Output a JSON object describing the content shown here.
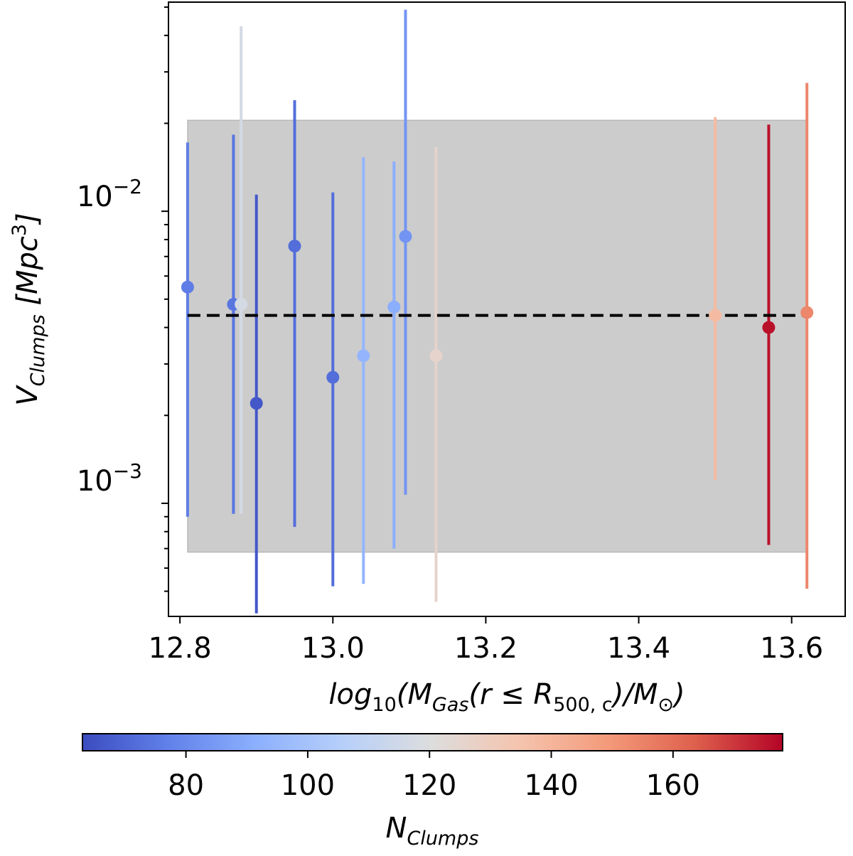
{
  "chart_data": {
    "type": "scatter",
    "x_scale": "linear",
    "y_scale": "log",
    "xlim": [
      12.785,
      13.67
    ],
    "ylim": [
      0.00041,
      0.052
    ],
    "xticks": [
      12.8,
      13.0,
      13.2,
      13.4,
      13.6
    ],
    "xtick_labels": [
      "12.8",
      "13.0",
      "13.2",
      "13.4",
      "13.6"
    ],
    "yticks": [
      0.001,
      0.01
    ],
    "ytick_labels": [
      {
        "base": "10",
        "exp": "−3"
      },
      {
        "base": "10",
        "exp": "−2"
      }
    ],
    "xlabel": {
      "prefix": "log",
      "prefix_sub": "10",
      "open": "(M",
      "gas_sub": "Gas",
      "mid": "(r ≤ R",
      "r_sub": "500, c",
      "close": ")/M",
      "sun_sub": "⊙",
      "end": ")"
    },
    "ylabel": {
      "var": "V",
      "var_sub": "Clumps",
      "units_open": "[Mpc",
      "units_exp": "3",
      "units_close": "]"
    },
    "mean_line": {
      "value": 0.0044,
      "x_range": [
        12.81,
        13.62
      ],
      "style": "dashed",
      "color": "#000000"
    },
    "band": {
      "lower": 0.00068,
      "upper": 0.0205,
      "x_range": [
        12.81,
        13.62
      ],
      "color": "#cccccc"
    },
    "colorbar": {
      "vmin": 63,
      "vmax": 178,
      "ticks": [
        80,
        100,
        120,
        140,
        160
      ],
      "tick_labels": [
        "80",
        "100",
        "120",
        "140",
        "160"
      ],
      "label": {
        "var": "N",
        "sub": "Clumps"
      },
      "colormap": "coolwarm"
    },
    "points": [
      {
        "x": 12.81,
        "y": 0.0055,
        "y_low": 0.0009,
        "y_high": 0.0172,
        "n": 76
      },
      {
        "x": 12.87,
        "y": 0.0048,
        "y_low": 0.00092,
        "y_high": 0.0183,
        "n": 74
      },
      {
        "x": 12.88,
        "y": 0.0048,
        "y_low": 0.00092,
        "y_high": 0.043,
        "n": 117
      },
      {
        "x": 12.9,
        "y": 0.0022,
        "y_low": 0.00042,
        "y_high": 0.0114,
        "n": 66
      },
      {
        "x": 12.95,
        "y": 0.0076,
        "y_low": 0.00083,
        "y_high": 0.024,
        "n": 72
      },
      {
        "x": 13.0,
        "y": 0.0027,
        "y_low": 0.00052,
        "y_high": 0.0116,
        "n": 72
      },
      {
        "x": 13.04,
        "y": 0.0032,
        "y_low": 0.00053,
        "y_high": 0.0153,
        "n": 94
      },
      {
        "x": 13.08,
        "y": 0.0047,
        "y_low": 0.0007,
        "y_high": 0.0148,
        "n": 91
      },
      {
        "x": 13.095,
        "y": 0.0082,
        "y_low": 0.00107,
        "y_high": 0.049,
        "n": 83
      },
      {
        "x": 13.135,
        "y": 0.0032,
        "y_low": 0.00046,
        "y_high": 0.0166,
        "n": 126
      },
      {
        "x": 13.5,
        "y": 0.0044,
        "y_low": 0.0012,
        "y_high": 0.021,
        "n": 138
      },
      {
        "x": 13.57,
        "y": 0.004,
        "y_low": 0.00072,
        "y_high": 0.0198,
        "n": 176
      },
      {
        "x": 13.62,
        "y": 0.0045,
        "y_low": 0.00051,
        "y_high": 0.0275,
        "n": 154
      }
    ]
  }
}
